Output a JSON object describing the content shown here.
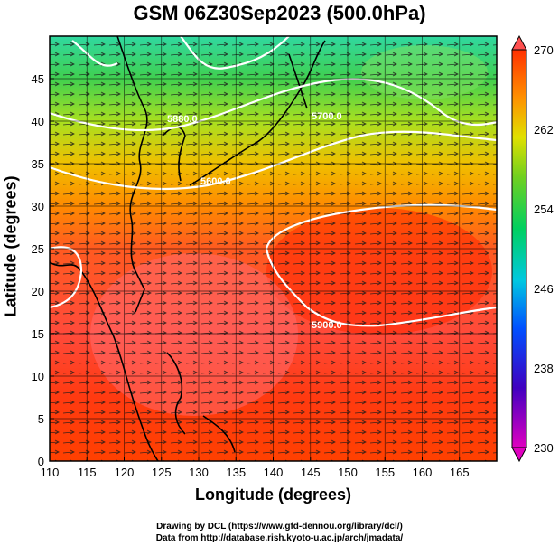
{
  "title": "GSM 06Z30Sep2023 (500.0hPa)",
  "xlabel": "Longitude (degrees)",
  "ylabel": "Latitude  (degrees)",
  "credits": {
    "line1": "Drawing by DCL (https://www.gfd-dennou.org/library/dcl/)",
    "line2": "Data from http://database.rish.kyoto-u.ac.jp/arch/jmadata/"
  },
  "map": {
    "lon_range": [
      110,
      170
    ],
    "lat_range": [
      0,
      50
    ],
    "x_ticks": [
      "110",
      "115",
      "120",
      "125",
      "130",
      "135",
      "140",
      "145",
      "150",
      "155",
      "160",
      "165"
    ],
    "y_ticks": [
      "0",
      "5",
      "10",
      "15",
      "20",
      "25",
      "30",
      "35",
      "40",
      "45"
    ],
    "colorbar": {
      "range": [
        230,
        270
      ],
      "labels": [
        "270",
        "262",
        "254",
        "246",
        "238",
        "230"
      ],
      "colors": [
        "#d400d4",
        "#3a00c0",
        "#0060ff",
        "#00c8c8",
        "#00d060",
        "#60d020",
        "#d8e000",
        "#ff9000",
        "#ff2a00",
        "#ff6060"
      ]
    },
    "contour_labels": [
      "5880.0",
      "5700.0",
      "5600.0",
      "5900.0"
    ]
  }
}
